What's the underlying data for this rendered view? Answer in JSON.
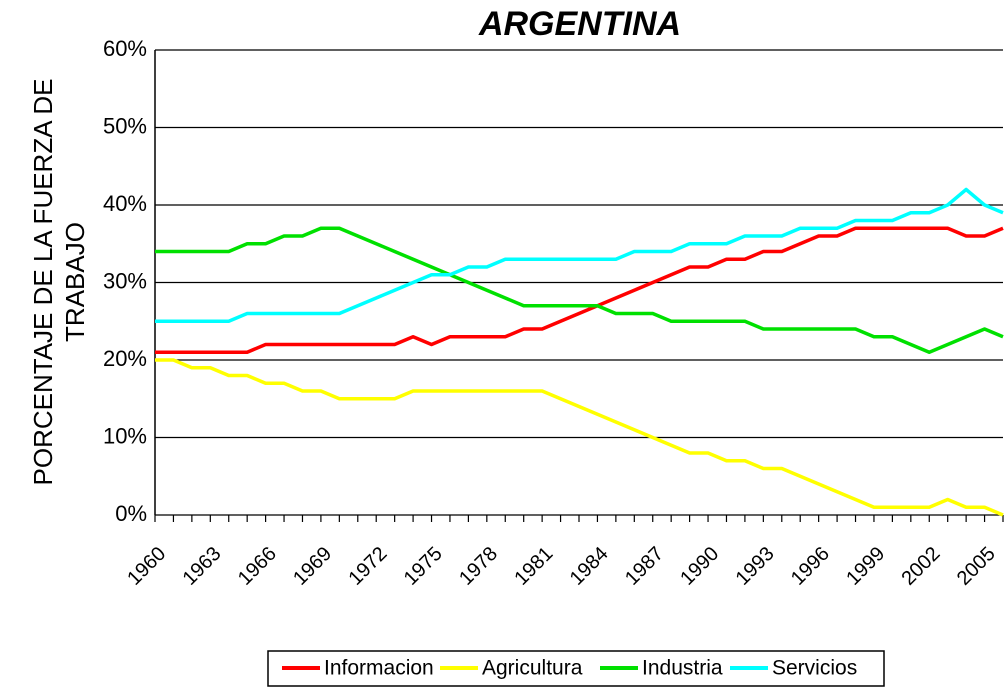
{
  "chart_data": {
    "type": "line",
    "title": "ARGENTINA",
    "y_label": [
      "PORCENTAJE DE LA FUERZA DE",
      "TRABAJO"
    ],
    "categories": [
      "1960",
      null,
      null,
      "1963",
      null,
      null,
      "1966",
      null,
      null,
      "1969",
      null,
      null,
      "1972",
      null,
      null,
      "1975",
      null,
      null,
      "1978",
      null,
      null,
      "1981",
      null,
      null,
      "1984",
      null,
      null,
      "1987",
      null,
      null,
      "1990",
      null,
      null,
      "1993",
      null,
      null,
      "1996",
      null,
      null,
      "1999",
      null,
      null,
      "2002",
      null,
      null,
      "2005",
      null
    ],
    "ylim": [
      0,
      60
    ],
    "yticks": [
      {
        "value": 0,
        "label": "0%"
      },
      {
        "value": 10,
        "label": "10%"
      },
      {
        "value": 20,
        "label": "20%"
      },
      {
        "value": 30,
        "label": "30%"
      },
      {
        "value": 40,
        "label": "40%"
      },
      {
        "value": 50,
        "label": "50%"
      },
      {
        "value": 60,
        "label": "60%"
      }
    ],
    "grid": true,
    "legend": "bottom",
    "series": [
      {
        "name": "Informacion",
        "color": "#ff0000",
        "values": [
          21,
          21,
          21,
          21,
          21,
          21,
          22,
          22,
          22,
          22,
          22,
          22,
          22,
          22,
          23,
          22,
          23,
          23,
          23,
          23,
          24,
          24,
          25,
          26,
          27,
          28,
          29,
          30,
          31,
          32,
          32,
          33,
          33,
          34,
          34,
          35,
          36,
          36,
          37,
          37,
          37,
          37,
          37,
          37,
          36,
          36,
          37
        ]
      },
      {
        "name": "Agricultura",
        "color": "#ffff00",
        "values": [
          20,
          20,
          19,
          19,
          18,
          18,
          17,
          17,
          16,
          16,
          15,
          15,
          15,
          15,
          16,
          16,
          16,
          16,
          16,
          16,
          16,
          16,
          15,
          14,
          13,
          12,
          11,
          10,
          9,
          8,
          8,
          7,
          7,
          6,
          6,
          5,
          4,
          3,
          2,
          1,
          1,
          1,
          1,
          2,
          1,
          1,
          0
        ]
      },
      {
        "name": "Industria",
        "color": "#00e000",
        "values": [
          34,
          34,
          34,
          34,
          34,
          35,
          35,
          36,
          36,
          37,
          37,
          36,
          35,
          34,
          33,
          32,
          31,
          30,
          29,
          28,
          27,
          27,
          27,
          27,
          27,
          26,
          26,
          26,
          25,
          25,
          25,
          25,
          25,
          24,
          24,
          24,
          24,
          24,
          24,
          23,
          23,
          22,
          21,
          22,
          23,
          24,
          23
        ]
      },
      {
        "name": "Servicios",
        "color": "#00ffff",
        "values": [
          25,
          25,
          25,
          25,
          25,
          26,
          26,
          26,
          26,
          26,
          26,
          27,
          28,
          29,
          30,
          31,
          31,
          32,
          32,
          33,
          33,
          33,
          33,
          33,
          33,
          33,
          34,
          34,
          34,
          35,
          35,
          35,
          36,
          36,
          36,
          37,
          37,
          37,
          38,
          38,
          38,
          39,
          39,
          40,
          42,
          40,
          39
        ]
      }
    ]
  }
}
